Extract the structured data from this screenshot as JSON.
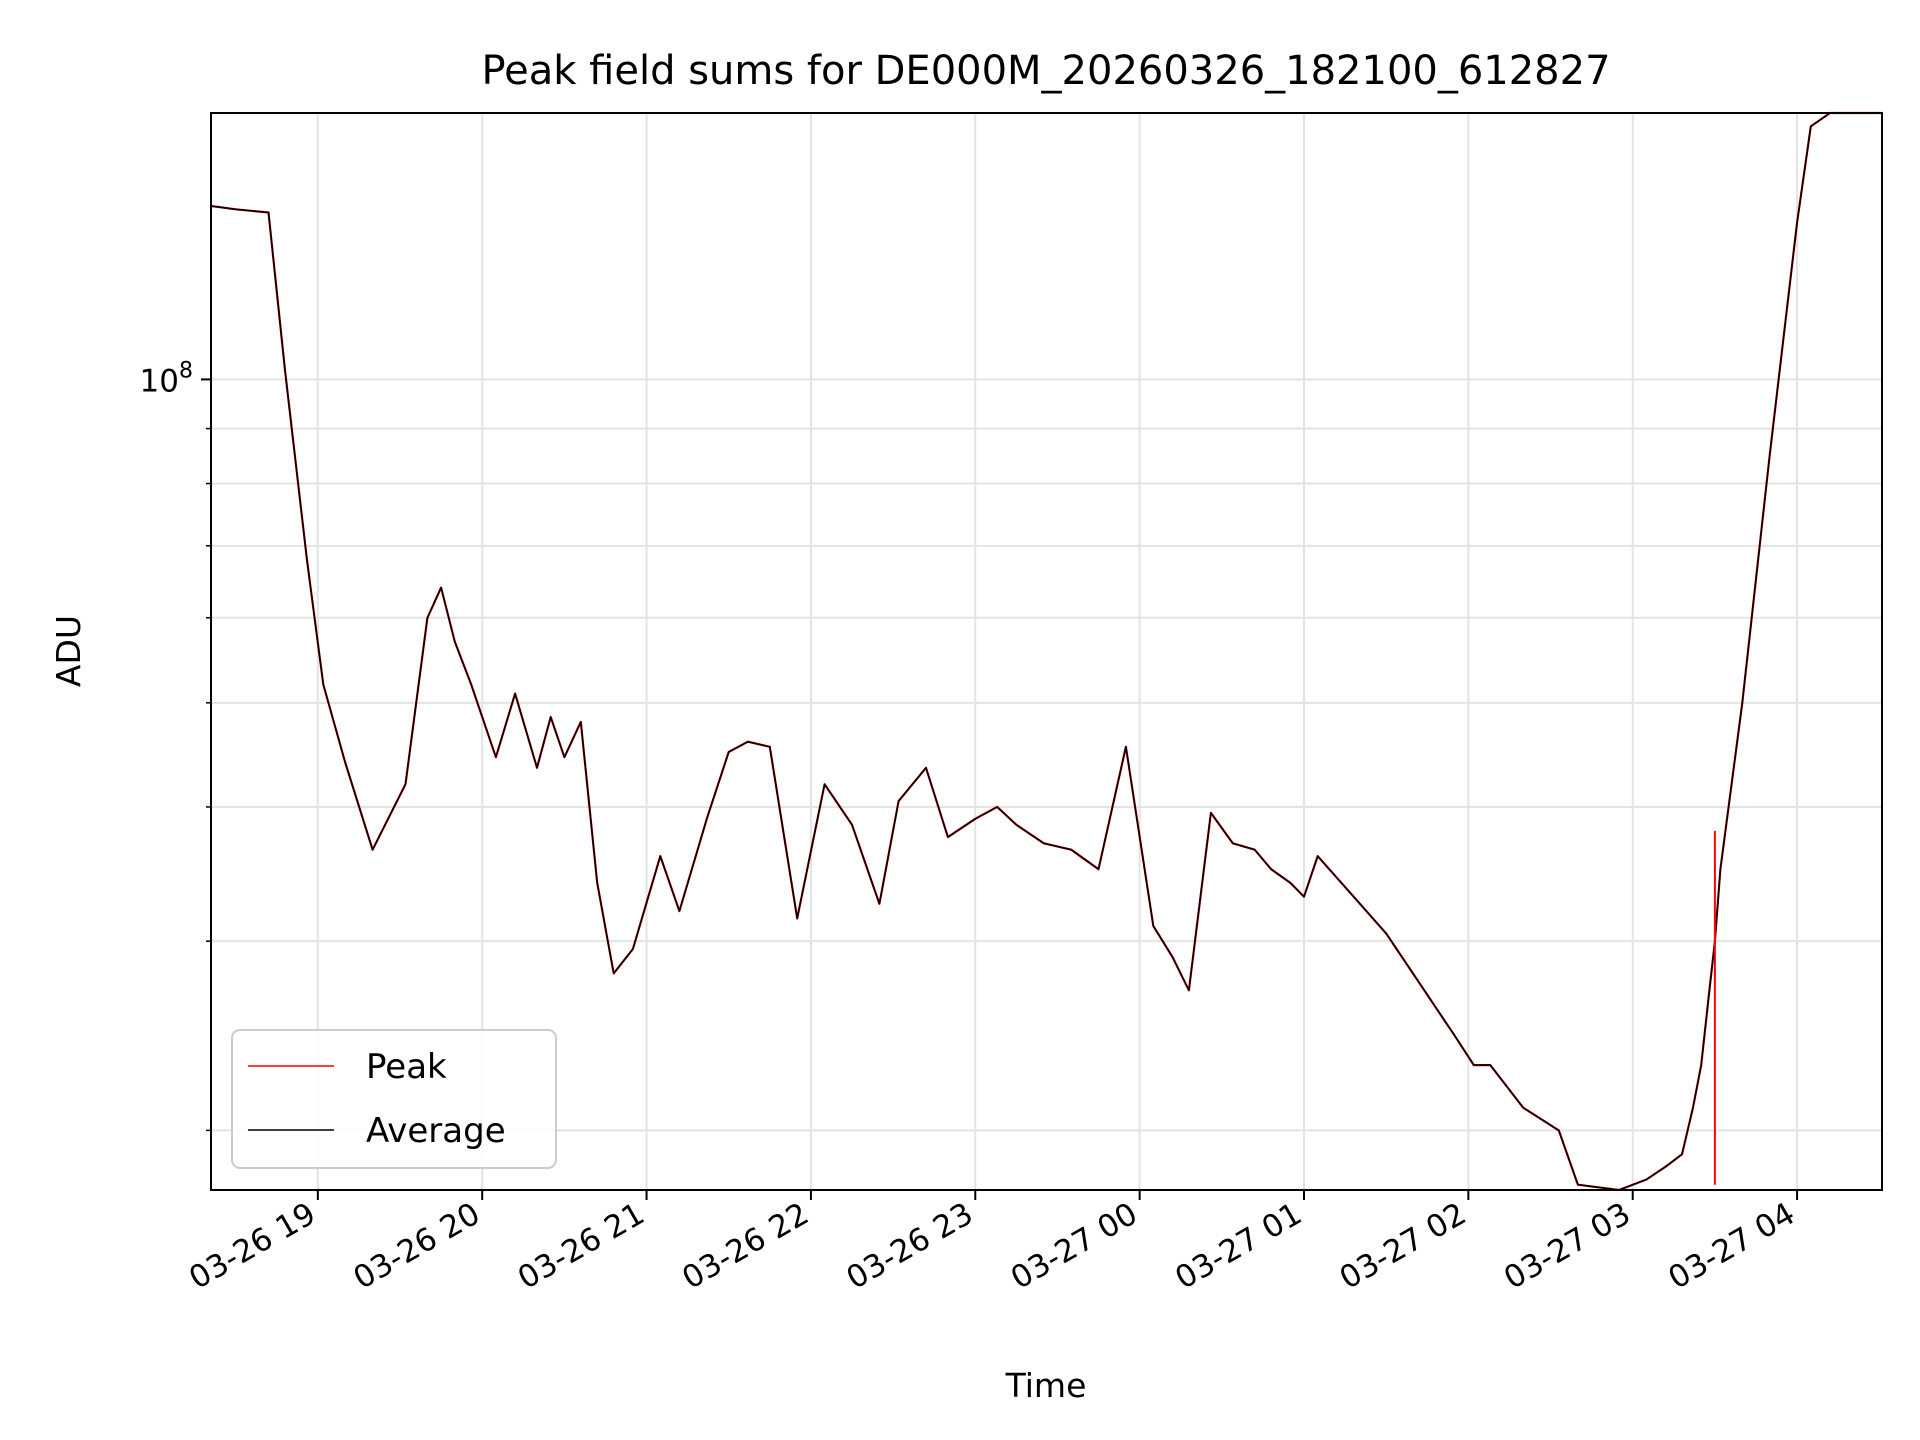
{
  "chart_data": {
    "type": "line",
    "title": "Peak field sums for DE000M_20260326_182100_612827",
    "xlabel": "Time",
    "ylabel": "ADU",
    "yscale": "log",
    "grid": true,
    "legend_position": "lower-left",
    "x_range": [
      "2026-03-26 18:21",
      "2026-03-27 04:31"
    ],
    "y_range": [
      17600000,
      177000000
    ],
    "x_ticks": [
      "03-26 19",
      "03-26 20",
      "03-26 21",
      "03-26 22",
      "03-26 23",
      "03-27 00",
      "03-27 01",
      "03-27 02",
      "03-27 03",
      "03-27 04"
    ],
    "y_ticks": [
      {
        "value": 100000000,
        "base": "10",
        "exp": "8"
      }
    ],
    "series": [
      {
        "name": "Peak",
        "color": "#ff0000",
        "x": [
          "2026-03-26 18:21",
          "2026-03-26 18:30",
          "2026-03-26 18:42",
          "2026-03-26 18:48",
          "2026-03-26 18:56",
          "2026-03-26 19:02",
          "2026-03-26 19:10",
          "2026-03-26 19:20",
          "2026-03-26 19:32",
          "2026-03-26 19:40",
          "2026-03-26 19:45",
          "2026-03-26 19:50",
          "2026-03-26 19:56",
          "2026-03-26 20:05",
          "2026-03-26 20:12",
          "2026-03-26 20:20",
          "2026-03-26 20:25",
          "2026-03-26 20:30",
          "2026-03-26 20:36",
          "2026-03-26 20:42",
          "2026-03-26 20:48",
          "2026-03-26 20:55",
          "2026-03-26 21:05",
          "2026-03-26 21:12",
          "2026-03-26 21:22",
          "2026-03-26 21:30",
          "2026-03-26 21:37",
          "2026-03-26 21:45",
          "2026-03-26 21:55",
          "2026-03-26 22:05",
          "2026-03-26 22:15",
          "2026-03-26 22:25",
          "2026-03-26 22:32",
          "2026-03-26 22:42",
          "2026-03-26 22:50",
          "2026-03-26 23:00",
          "2026-03-26 23:08",
          "2026-03-26 23:15",
          "2026-03-26 23:25",
          "2026-03-26 23:35",
          "2026-03-26 23:45",
          "2026-03-26 23:55",
          "2026-03-27 00:05",
          "2026-03-27 00:12",
          "2026-03-27 00:18",
          "2026-03-27 00:26",
          "2026-03-27 00:34",
          "2026-03-27 00:42",
          "2026-03-27 00:48",
          "2026-03-27 00:55",
          "2026-03-27 01:00",
          "2026-03-27 01:05",
          "2026-03-27 01:30",
          "2026-03-27 01:55",
          "2026-03-27 02:02",
          "2026-03-27 02:08",
          "2026-03-27 02:20",
          "2026-03-27 02:33",
          "2026-03-27 02:40",
          "2026-03-27 02:55",
          "2026-03-27 03:05",
          "2026-03-27 03:12",
          "2026-03-27 03:18",
          "2026-03-27 03:22",
          "2026-03-27 03:25",
          "2026-03-27 03:28",
          "2026-03-27 03:30",
          "2026-03-27 03:32",
          "2026-03-27 03:40",
          "2026-03-27 03:50",
          "2026-03-27 04:00",
          "2026-03-27 04:05",
          "2026-03-27 04:12",
          "2026-03-27 04:20",
          "2026-03-27 04:31"
        ],
        "values": [
          145000000,
          144000000,
          143000000,
          102000000,
          68000000,
          52000000,
          44000000,
          36500000,
          42000000,
          60000000,
          64000000,
          57000000,
          52000000,
          44500000,
          51000000,
          43500000,
          48500000,
          44500000,
          48000000,
          34000000,
          28000000,
          29500000,
          36000000,
          32000000,
          39000000,
          45000000,
          46000000,
          45500000,
          31500000,
          42000000,
          38500000,
          32500000,
          40500000,
          43500000,
          37500000,
          39000000,
          40000000,
          38500000,
          37000000,
          36500000,
          35000000,
          45500000,
          31000000,
          29000000,
          27000000,
          39500000,
          37000000,
          36500000,
          35000000,
          34000000,
          33000000,
          36000000,
          30500000,
          24500000,
          23000000,
          23000000,
          21000000,
          20000000,
          17800000,
          17600000,
          18000000,
          18500000,
          19000000,
          21000000,
          23000000,
          27000000,
          30000000,
          35000000,
          50000000,
          85000000,
          140000000,
          172000000,
          177000000,
          177000000,
          177000000
        ]
      },
      {
        "name": "Average",
        "color": "#000000",
        "x": [
          "2026-03-26 18:21",
          "2026-03-26 18:30",
          "2026-03-26 18:42",
          "2026-03-26 18:48",
          "2026-03-26 18:56",
          "2026-03-26 19:02",
          "2026-03-26 19:10",
          "2026-03-26 19:20",
          "2026-03-26 19:32",
          "2026-03-26 19:40",
          "2026-03-26 19:45",
          "2026-03-26 19:50",
          "2026-03-26 19:56",
          "2026-03-26 20:05",
          "2026-03-26 20:12",
          "2026-03-26 20:20",
          "2026-03-26 20:25",
          "2026-03-26 20:30",
          "2026-03-26 20:36",
          "2026-03-26 20:42",
          "2026-03-26 20:48",
          "2026-03-26 20:55",
          "2026-03-26 21:05",
          "2026-03-26 21:12",
          "2026-03-26 21:22",
          "2026-03-26 21:30",
          "2026-03-26 21:37",
          "2026-03-26 21:45",
          "2026-03-26 21:55",
          "2026-03-26 22:05",
          "2026-03-26 22:15",
          "2026-03-26 22:25",
          "2026-03-26 22:32",
          "2026-03-26 22:42",
          "2026-03-26 22:50",
          "2026-03-26 23:00",
          "2026-03-26 23:08",
          "2026-03-26 23:15",
          "2026-03-26 23:25",
          "2026-03-26 23:35",
          "2026-03-26 23:45",
          "2026-03-26 23:55",
          "2026-03-27 00:05",
          "2026-03-27 00:12",
          "2026-03-27 00:18",
          "2026-03-27 00:26",
          "2026-03-27 00:34",
          "2026-03-27 00:42",
          "2026-03-27 00:48",
          "2026-03-27 00:55",
          "2026-03-27 01:00",
          "2026-03-27 01:05",
          "2026-03-27 01:30",
          "2026-03-27 01:55",
          "2026-03-27 02:02",
          "2026-03-27 02:08",
          "2026-03-27 02:20",
          "2026-03-27 02:33",
          "2026-03-27 02:40",
          "2026-03-27 02:55",
          "2026-03-27 03:05",
          "2026-03-27 03:12",
          "2026-03-27 03:18",
          "2026-03-27 03:22",
          "2026-03-27 03:25",
          "2026-03-27 03:28",
          "2026-03-27 03:30",
          "2026-03-27 03:32",
          "2026-03-27 03:40",
          "2026-03-27 03:50",
          "2026-03-27 04:00",
          "2026-03-27 04:05",
          "2026-03-27 04:12",
          "2026-03-27 04:20",
          "2026-03-27 04:31"
        ],
        "values": [
          145000000,
          144000000,
          143000000,
          102000000,
          68000000,
          52000000,
          44000000,
          36500000,
          42000000,
          60000000,
          64000000,
          57000000,
          52000000,
          44500000,
          51000000,
          43500000,
          48500000,
          44500000,
          48000000,
          34000000,
          28000000,
          29500000,
          36000000,
          32000000,
          39000000,
          45000000,
          46000000,
          45500000,
          31500000,
          42000000,
          38500000,
          32500000,
          40500000,
          43500000,
          37500000,
          39000000,
          40000000,
          38500000,
          37000000,
          36500000,
          35000000,
          45500000,
          31000000,
          29000000,
          27000000,
          39500000,
          37000000,
          36500000,
          35000000,
          34000000,
          33000000,
          36000000,
          30500000,
          24500000,
          23000000,
          23000000,
          21000000,
          20000000,
          17800000,
          17600000,
          18000000,
          18500000,
          19000000,
          21000000,
          23000000,
          27000000,
          30000000,
          35000000,
          50000000,
          85000000,
          140000000,
          172000000,
          177000000,
          177000000,
          177000000
        ]
      }
    ],
    "annotations": [
      {
        "type": "spike",
        "series": "Peak",
        "x": "2026-03-27 03:30",
        "y_from": 17800000,
        "y_to": 38000000
      }
    ]
  }
}
